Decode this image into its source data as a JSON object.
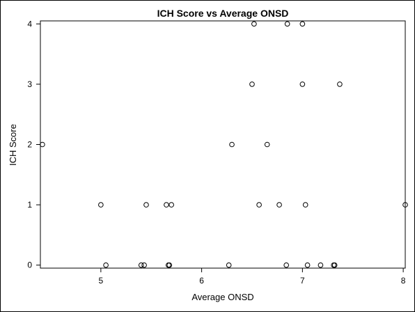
{
  "chart_data": {
    "type": "scatter",
    "title": "ICH Score vs Average ONSD",
    "xlabel": "Average ONSD",
    "ylabel": "ICH Score",
    "xlim": [
      4.4,
      8.02
    ],
    "ylim": [
      -0.05,
      4.05
    ],
    "xticks": [
      5,
      6,
      7,
      8
    ],
    "yticks": [
      0,
      1,
      2,
      3,
      4
    ],
    "grid": false,
    "marker": "open-circle",
    "colors": {
      "axis": "#000000",
      "marker_stroke": "#000000",
      "background": "#ffffff"
    },
    "series": [
      {
        "points": [
          {
            "x": 4.42,
            "y": 2
          },
          {
            "x": 5.0,
            "y": 1
          },
          {
            "x": 5.05,
            "y": 0
          },
          {
            "x": 5.4,
            "y": 0
          },
          {
            "x": 5.43,
            "y": 0
          },
          {
            "x": 5.45,
            "y": 1
          },
          {
            "x": 5.65,
            "y": 1
          },
          {
            "x": 5.67,
            "y": 0
          },
          {
            "x": 5.68,
            "y": 0
          },
          {
            "x": 5.7,
            "y": 1
          },
          {
            "x": 6.27,
            "y": 0
          },
          {
            "x": 6.3,
            "y": 2
          },
          {
            "x": 6.5,
            "y": 3
          },
          {
            "x": 6.52,
            "y": 4
          },
          {
            "x": 6.57,
            "y": 1
          },
          {
            "x": 6.65,
            "y": 2
          },
          {
            "x": 6.77,
            "y": 1
          },
          {
            "x": 6.84,
            "y": 0
          },
          {
            "x": 6.85,
            "y": 4
          },
          {
            "x": 7.0,
            "y": 4
          },
          {
            "x": 7.0,
            "y": 3
          },
          {
            "x": 7.03,
            "y": 1
          },
          {
            "x": 7.05,
            "y": 0
          },
          {
            "x": 7.18,
            "y": 0
          },
          {
            "x": 7.31,
            "y": 0
          },
          {
            "x": 7.32,
            "y": 0
          },
          {
            "x": 7.37,
            "y": 3
          },
          {
            "x": 8.02,
            "y": 1
          }
        ]
      }
    ]
  }
}
